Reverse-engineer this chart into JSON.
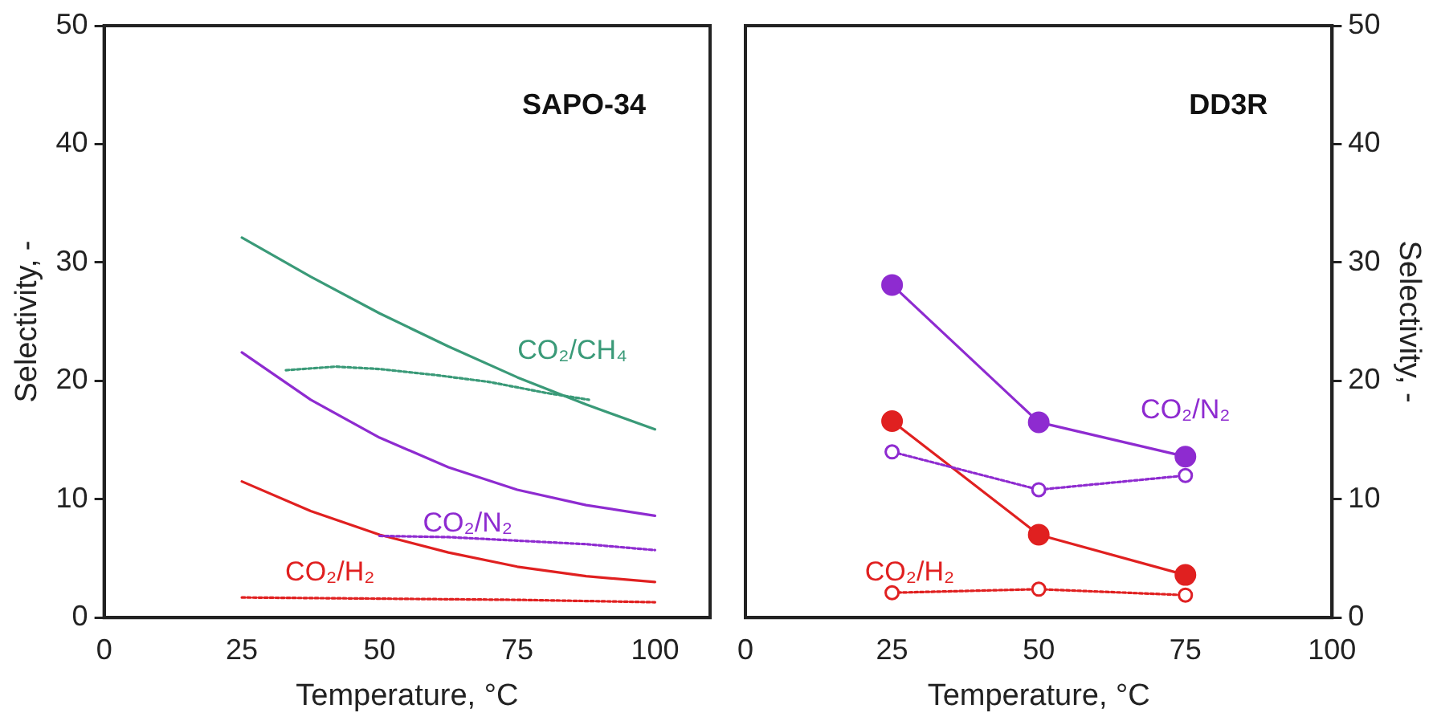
{
  "chart_data": [
    {
      "type": "line",
      "title": "SAPO-34",
      "xlabel": "Temperature, °C",
      "ylabel": "Selectivity, -",
      "xlim": [
        0,
        110
      ],
      "xticks": [
        0,
        25,
        50,
        75,
        100
      ],
      "ylim": [
        0,
        50
      ],
      "yticks": [
        0,
        10,
        20,
        30,
        40,
        50
      ],
      "grid": false,
      "legend": false,
      "series": [
        {
          "name": "CO₂/CH₄",
          "color": "#3a9a78",
          "line_style": "solid",
          "marker": "none",
          "x": [
            25,
            37.5,
            50,
            62.5,
            75,
            87.5,
            100
          ],
          "values": [
            32.1,
            28.8,
            25.7,
            22.9,
            20.3,
            18.0,
            15.9
          ]
        },
        {
          "color": "#3a9a78",
          "line_style": "dotted",
          "marker": "none",
          "x": [
            33,
            42,
            50,
            60,
            70,
            80,
            88
          ],
          "values": [
            20.9,
            21.2,
            21.0,
            20.5,
            19.9,
            19.0,
            18.4
          ]
        },
        {
          "name": "CO₂/N₂",
          "color": "#8e2bd0",
          "line_style": "solid",
          "marker": "none",
          "x": [
            25,
            37.5,
            50,
            62.5,
            75,
            87.5,
            100
          ],
          "values": [
            22.4,
            18.4,
            15.2,
            12.7,
            10.8,
            9.5,
            8.6
          ]
        },
        {
          "color": "#8e2bd0",
          "line_style": "dotted",
          "marker": "none",
          "x": [
            50,
            62.5,
            75,
            87.5,
            100
          ],
          "values": [
            6.9,
            6.8,
            6.5,
            6.2,
            5.7
          ]
        },
        {
          "name": "CO₂/H₂",
          "color": "#e02020",
          "line_style": "solid",
          "marker": "none",
          "x": [
            25,
            37.5,
            50,
            62.5,
            75,
            87.5,
            100
          ],
          "values": [
            11.5,
            9.0,
            7.0,
            5.5,
            4.3,
            3.5,
            3.0
          ]
        },
        {
          "color": "#e02020",
          "line_style": "dotted",
          "marker": "none",
          "x": [
            25,
            50,
            75,
            100
          ],
          "values": [
            1.7,
            1.6,
            1.5,
            1.3
          ]
        }
      ]
    },
    {
      "type": "line",
      "title": "DD3R",
      "xlabel": "Temperature, °C",
      "y2label": "Selectivity, -",
      "xlim": [
        0,
        100
      ],
      "xticks": [
        0,
        25,
        50,
        75,
        100
      ],
      "y2lim": [
        0,
        50
      ],
      "y2ticks": [
        0,
        10,
        20,
        30,
        40,
        50
      ],
      "grid": false,
      "legend": false,
      "series": [
        {
          "name": "CO₂/N₂",
          "color": "#8e2bd0",
          "line_style": "solid",
          "marker": "circle",
          "axis": "y2",
          "x": [
            25,
            50,
            75
          ],
          "values": [
            28.1,
            16.5,
            13.6
          ]
        },
        {
          "color": "#8e2bd0",
          "line_style": "dotted",
          "marker": "circle",
          "axis": "y2",
          "x": [
            25,
            50,
            75
          ],
          "values": [
            14.0,
            10.8,
            12.0
          ]
        },
        {
          "name": "CO₂/H₂",
          "color": "#e02020",
          "line_style": "solid",
          "marker": "circle",
          "axis": "y2",
          "x": [
            25,
            50,
            75
          ],
          "values": [
            16.6,
            7.0,
            3.6
          ]
        },
        {
          "color": "#e02020",
          "line_style": "dotted",
          "marker": "circle",
          "axis": "y2",
          "x": [
            25,
            50,
            75
          ],
          "values": [
            2.1,
            2.4,
            1.9
          ]
        }
      ]
    }
  ]
}
